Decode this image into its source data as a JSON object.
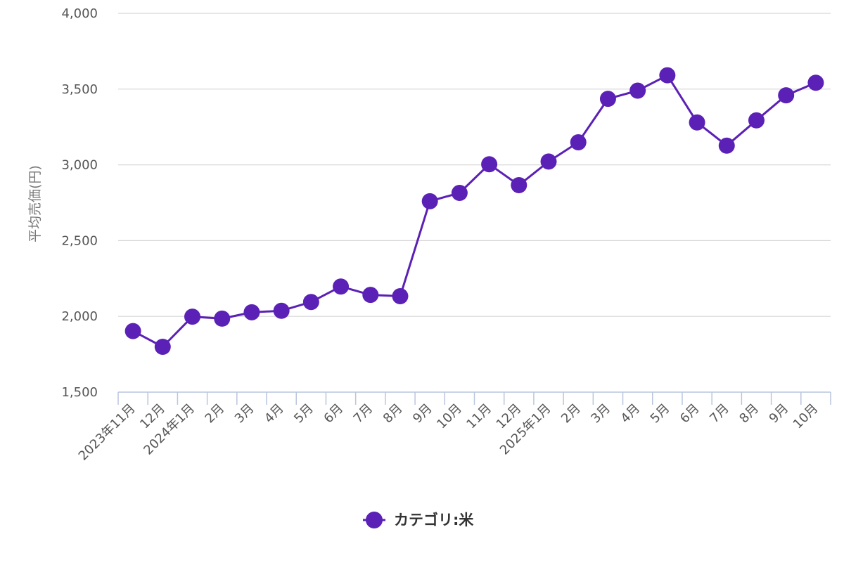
{
  "chart_data": {
    "type": "line",
    "ylabel": "平均売価(円)",
    "ylim": [
      1500,
      4000
    ],
    "yticks": [
      1500,
      2000,
      2500,
      3000,
      3500,
      4000
    ],
    "ytick_labels": [
      "1,500",
      "2,000",
      "2,500",
      "3,000",
      "3,500",
      "4,000"
    ],
    "categories": [
      "2023年11月",
      "12月",
      "2024年1月",
      "2月",
      "3月",
      "4月",
      "5月",
      "6月",
      "7月",
      "8月",
      "9月",
      "10月",
      "11月",
      "12月",
      "2025年1月",
      "2月",
      "3月",
      "4月",
      "5月",
      "6月",
      "7月",
      "8月",
      "9月",
      "10月"
    ],
    "series": [
      {
        "name": "カテゴリ:米",
        "color": "#5b21b6",
        "values": [
          1903,
          1799,
          1998,
          1985,
          2027,
          2037,
          2095,
          2197,
          2142,
          2133,
          2760,
          2815,
          3004,
          2866,
          3022,
          3149,
          3436,
          3490,
          3591,
          3280,
          3127,
          3294,
          3459,
          3542
        ]
      }
    ],
    "grid": true,
    "legend": "bottom-center"
  }
}
